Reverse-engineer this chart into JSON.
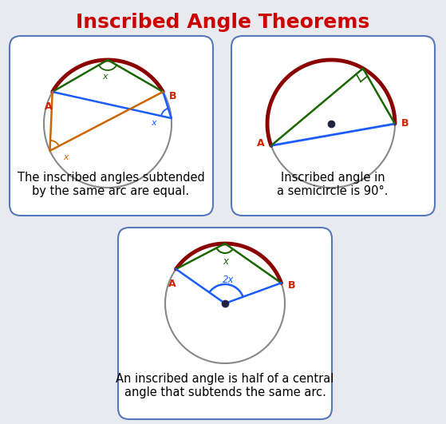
{
  "title": "Inscribed Angle Theorems",
  "title_color": "#cc0000",
  "title_fontsize": 18,
  "bg_color": "#e8eaf0",
  "box_bg": "#ffffff",
  "box_edge": "#5577bb",
  "circle_color": "#888888",
  "arc_color": "#8b0000",
  "dark_green": "#1a6600",
  "blue": "#1a5cff",
  "orange": "#cc6600",
  "label1": "The inscribed angles subtended\nby the same arc are equal.",
  "label2": "Inscribed angle in\na semicircle is 90°.",
  "label3": "An inscribed angle is half of a central\nangle that subtends the same arc."
}
